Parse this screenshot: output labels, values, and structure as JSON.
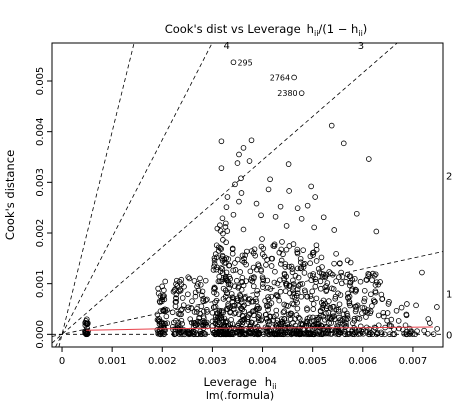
{
  "chart_data": {
    "type": "scatter",
    "title": "Cook's dist vs Leverage  h_ii/(1 − h_ii)",
    "title_main": "Cook's dist vs Leverage",
    "title_formula_h": "h",
    "title_formula_sub": "ii",
    "title_formula_mid": "/(1 − h",
    "title_formula_sub2": "ii",
    "title_formula_end": ")",
    "xlabel_main": "Leverage",
    "xlabel_h": "h",
    "xlabel_sub": "ii",
    "ylabel": "Cook's distance",
    "sublabel": "lm(.formula)",
    "xlim": [
      -0.0002,
      0.0076
    ],
    "ylim": [
      -0.00025,
      0.00575
    ],
    "x_ticks": [
      {
        "value": 0,
        "label": "0"
      },
      {
        "value": 0.001,
        "label": "0.001"
      },
      {
        "value": 0.002,
        "label": "0.002"
      },
      {
        "value": 0.003,
        "label": "0.003"
      },
      {
        "value": 0.004,
        "label": "0.004"
      },
      {
        "value": 0.005,
        "label": "0.005"
      },
      {
        "value": 0.006,
        "label": "0.006"
      },
      {
        "value": 0.007,
        "label": "0.007"
      }
    ],
    "y_ticks": [
      {
        "value": 0,
        "label": "0.000"
      },
      {
        "value": 0.001,
        "label": "0.001"
      },
      {
        "value": 0.002,
        "label": "0.002"
      },
      {
        "value": 0.003,
        "label": "0.003"
      },
      {
        "value": 0.004,
        "label": "0.004"
      },
      {
        "value": 0.005,
        "label": "0.005"
      }
    ],
    "reference_lines": [
      {
        "label": "4",
        "slope": 4.0,
        "intercept": 0
      },
      {
        "label": "3",
        "slope": 1.92,
        "intercept": 0
      },
      {
        "label": "2",
        "slope": 0.86,
        "intercept": 0
      },
      {
        "label": "1",
        "slope": 0.215,
        "intercept": 0
      },
      {
        "label": "0",
        "slope": 0,
        "intercept": 0
      }
    ],
    "line_labels_right": [
      {
        "label": "2",
        "y": 0.00313
      },
      {
        "label": "1",
        "y": 0.000805
      },
      {
        "label": "0",
        "y": 0.0
      }
    ],
    "line_labels_top": [
      {
        "label": "4",
        "x": 0.00342
      },
      {
        "label": "3",
        "x": 0.0061
      }
    ],
    "smooth_line": [
      [
        0.00048,
        8e-05
      ],
      [
        0.002,
        0.00011
      ],
      [
        0.003,
        0.00012
      ],
      [
        0.004,
        0.000125
      ],
      [
        0.005,
        0.00013
      ],
      [
        0.006,
        0.00013
      ],
      [
        0.0074,
        0.000145
      ]
    ],
    "labeled_points": [
      {
        "id": "295",
        "x": 0.00342,
        "y": 0.00537
      },
      {
        "id": "2764",
        "x": 0.00463,
        "y": 0.00507
      },
      {
        "id": "2380",
        "x": 0.00478,
        "y": 0.00476
      }
    ],
    "extra_points": [
      [
        0.00378,
        0.00383
      ],
      [
        0.00362,
        0.00368
      ],
      [
        0.00538,
        0.00412
      ],
      [
        0.00562,
        0.00377
      ],
      [
        0.00612,
        0.00346
      ],
      [
        0.00318,
        0.00381
      ],
      [
        0.00318,
        0.00328
      ],
      [
        0.00353,
        0.00355
      ],
      [
        0.0035,
        0.00338
      ],
      [
        0.00374,
        0.00342
      ],
      [
        0.00452,
        0.00336
      ],
      [
        0.00415,
        0.00306
      ],
      [
        0.0033,
        0.00271
      ],
      [
        0.00345,
        0.00296
      ],
      [
        0.00357,
        0.00308
      ],
      [
        0.00358,
        0.00279
      ],
      [
        0.00412,
        0.00286
      ],
      [
        0.00453,
        0.00283
      ],
      [
        0.00497,
        0.00292
      ],
      [
        0.00328,
        0.00251
      ],
      [
        0.00353,
        0.00262
      ],
      [
        0.00388,
        0.00258
      ],
      [
        0.00436,
        0.00252
      ],
      [
        0.0047,
        0.00249
      ],
      [
        0.0049,
        0.00254
      ],
      [
        0.00505,
        0.00271
      ],
      [
        0.0032,
        0.00229
      ],
      [
        0.00342,
        0.00236
      ],
      [
        0.00397,
        0.00235
      ],
      [
        0.00426,
        0.00232
      ],
      [
        0.00478,
        0.00228
      ],
      [
        0.00522,
        0.00231
      ],
      [
        0.00588,
        0.00238
      ],
      [
        0.00326,
        0.00212
      ],
      [
        0.00362,
        0.00207
      ],
      [
        0.00448,
        0.00214
      ],
      [
        0.00503,
        0.00211
      ],
      [
        0.00543,
        0.00206
      ],
      [
        0.00627,
        0.00203
      ],
      [
        0.00718,
        0.00122
      ]
    ],
    "bands": [
      {
        "x0": 0.00045,
        "x1": 0.00052,
        "ymax": 0.0003,
        "n": 30
      },
      {
        "x0": 0.0019,
        "x1": 0.0021,
        "ymax": 0.00105,
        "n": 55
      },
      {
        "x0": 0.0022,
        "x1": 0.00245,
        "ymax": 0.0011,
        "n": 55
      },
      {
        "x0": 0.0025,
        "x1": 0.0029,
        "ymax": 0.00115,
        "n": 80
      },
      {
        "x0": 0.003,
        "x1": 0.0033,
        "ymax": 0.0022,
        "n": 140
      },
      {
        "x0": 0.0033,
        "x1": 0.0038,
        "ymax": 0.0018,
        "n": 150
      },
      {
        "x0": 0.0038,
        "x1": 0.0045,
        "ymax": 0.0019,
        "n": 190
      },
      {
        "x0": 0.0045,
        "x1": 0.0052,
        "ymax": 0.0018,
        "n": 190
      },
      {
        "x0": 0.0052,
        "x1": 0.0058,
        "ymax": 0.0016,
        "n": 130
      },
      {
        "x0": 0.0058,
        "x1": 0.0064,
        "ymax": 0.0012,
        "n": 80
      },
      {
        "x0": 0.0064,
        "x1": 0.007,
        "ymax": 0.0007,
        "n": 35
      },
      {
        "x0": 0.007,
        "x1": 0.0075,
        "ymax": 0.0006,
        "n": 10
      }
    ],
    "colors": {
      "points": "#000000",
      "smooth": "#e8404a",
      "ref": "#000000"
    }
  }
}
